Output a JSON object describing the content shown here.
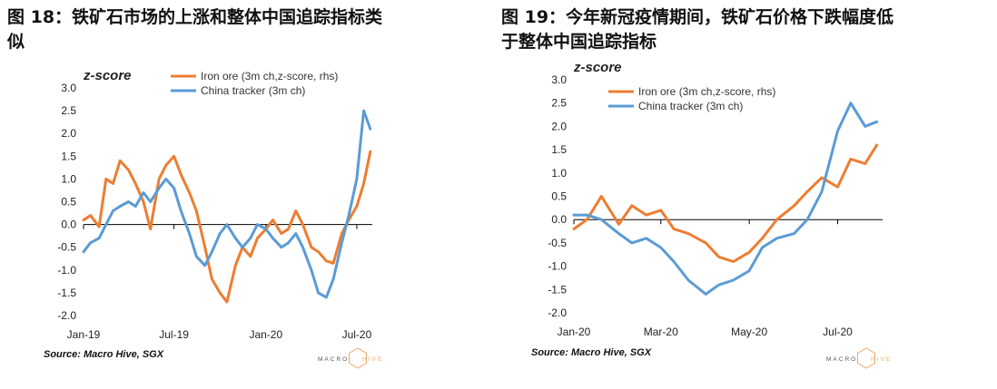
{
  "colors": {
    "iron": "#ED7D31",
    "china": "#5B9BD5",
    "axis": "#000000",
    "logo": "#F0A868"
  },
  "logo": {
    "prefix": "MACRO",
    "suffix": "HIVE"
  },
  "chart_data": [
    {
      "id": "left",
      "type": "line",
      "title_line1": "图 18：铁矿石市场的上涨和整体中国追踪指标类",
      "title_line2": "似",
      "ylabel": "z-score",
      "ylim": [
        -2.0,
        3.0
      ],
      "yticks": [
        "3.0",
        "2.5",
        "2.0",
        "1.5",
        "1.0",
        "0.5",
        "0.0",
        "-0.5",
        "-1.0",
        "-1.5",
        "-2.0"
      ],
      "xticks": [
        "Jan-19",
        "Jul-19",
        "Jan-20",
        "Jul-20"
      ],
      "xrange": [
        "2019-01-01",
        "2020-08-01"
      ],
      "xtick_dates": [
        "2019-01-01",
        "2019-07-01",
        "2020-01-01",
        "2020-07-01"
      ],
      "source": "Source: Macro Hive, SGX",
      "series": [
        {
          "name": "Iron ore (3m ch,z-score, rhs)",
          "color": "iron",
          "x": [
            "2019-01-01",
            "2019-01-15",
            "2019-02-01",
            "2019-02-15",
            "2019-03-01",
            "2019-03-15",
            "2019-04-01",
            "2019-04-15",
            "2019-05-01",
            "2019-05-15",
            "2019-06-01",
            "2019-06-15",
            "2019-07-01",
            "2019-07-15",
            "2019-08-01",
            "2019-08-15",
            "2019-09-01",
            "2019-09-15",
            "2019-10-01",
            "2019-10-15",
            "2019-11-01",
            "2019-11-15",
            "2019-12-01",
            "2019-12-15",
            "2020-01-01",
            "2020-01-15",
            "2020-02-01",
            "2020-02-15",
            "2020-03-01",
            "2020-03-15",
            "2020-04-01",
            "2020-04-15",
            "2020-05-01",
            "2020-05-15",
            "2020-06-01",
            "2020-06-15",
            "2020-07-01",
            "2020-07-15",
            "2020-07-28"
          ],
          "values": [
            0.1,
            0.2,
            -0.05,
            1.0,
            0.9,
            1.4,
            1.2,
            0.9,
            0.5,
            -0.1,
            1.0,
            1.3,
            1.5,
            1.1,
            0.7,
            0.3,
            -0.5,
            -1.2,
            -1.5,
            -1.7,
            -0.9,
            -0.5,
            -0.7,
            -0.3,
            -0.1,
            0.1,
            -0.2,
            -0.1,
            0.3,
            0.0,
            -0.5,
            -0.6,
            -0.8,
            -0.85,
            -0.2,
            0.1,
            0.4,
            0.9,
            1.6
          ]
        },
        {
          "name": "China tracker (3m ch)",
          "color": "china",
          "x": [
            "2019-01-01",
            "2019-01-15",
            "2019-02-01",
            "2019-02-15",
            "2019-03-01",
            "2019-03-15",
            "2019-04-01",
            "2019-04-15",
            "2019-05-01",
            "2019-05-15",
            "2019-06-01",
            "2019-06-15",
            "2019-07-01",
            "2019-07-15",
            "2019-08-01",
            "2019-08-15",
            "2019-09-01",
            "2019-09-15",
            "2019-10-01",
            "2019-10-15",
            "2019-11-01",
            "2019-11-15",
            "2019-12-01",
            "2019-12-15",
            "2020-01-01",
            "2020-01-15",
            "2020-02-01",
            "2020-02-15",
            "2020-03-01",
            "2020-03-15",
            "2020-04-01",
            "2020-04-15",
            "2020-05-01",
            "2020-05-15",
            "2020-06-01",
            "2020-06-15",
            "2020-07-01",
            "2020-07-15",
            "2020-07-28"
          ],
          "values": [
            -0.6,
            -0.4,
            -0.3,
            0.0,
            0.3,
            0.4,
            0.5,
            0.4,
            0.7,
            0.5,
            0.8,
            1.0,
            0.8,
            0.3,
            -0.2,
            -0.7,
            -0.9,
            -0.6,
            -0.2,
            0.0,
            -0.3,
            -0.5,
            -0.3,
            0.0,
            -0.1,
            -0.3,
            -0.5,
            -0.4,
            -0.2,
            -0.5,
            -1.0,
            -1.5,
            -1.6,
            -1.2,
            -0.4,
            0.2,
            1.0,
            2.5,
            2.1
          ]
        }
      ]
    },
    {
      "id": "right",
      "type": "line",
      "title_line1": "图 19：今年新冠疫情期间，铁矿石价格下跌幅度低",
      "title_line2": "于整体中国追踪指标",
      "ylabel": "z-score",
      "ylim": [
        -2.0,
        3.0
      ],
      "yticks": [
        "3.0",
        "2.5",
        "2.0",
        "1.5",
        "1.0",
        "0.5",
        "0.0",
        "-0.5",
        "-1.0",
        "-1.5",
        "-2.0"
      ],
      "xticks": [
        "Jan-20",
        "Mar-20",
        "May-20",
        "Jul-20"
      ],
      "xrange": [
        "2020-01-01",
        "2020-08-01"
      ],
      "xtick_dates": [
        "2020-01-01",
        "2020-03-01",
        "2020-05-01",
        "2020-07-01"
      ],
      "source": "Source: Macro Hive, SGX",
      "series": [
        {
          "name": "Iron ore (3m ch,z-score, rhs)",
          "color": "iron",
          "x": [
            "2020-01-01",
            "2020-01-10",
            "2020-01-20",
            "2020-02-01",
            "2020-02-10",
            "2020-02-20",
            "2020-03-01",
            "2020-03-10",
            "2020-03-20",
            "2020-04-01",
            "2020-04-10",
            "2020-04-20",
            "2020-05-01",
            "2020-05-10",
            "2020-05-20",
            "2020-06-01",
            "2020-06-10",
            "2020-06-20",
            "2020-07-01",
            "2020-07-10",
            "2020-07-20",
            "2020-07-28"
          ],
          "values": [
            -0.2,
            0.0,
            0.5,
            -0.1,
            0.3,
            0.1,
            0.2,
            -0.2,
            -0.3,
            -0.5,
            -0.8,
            -0.9,
            -0.7,
            -0.4,
            0.0,
            0.3,
            0.6,
            0.9,
            0.7,
            1.3,
            1.2,
            1.6
          ]
        },
        {
          "name": "China tracker (3m ch)",
          "color": "china",
          "x": [
            "2020-01-01",
            "2020-01-10",
            "2020-01-20",
            "2020-02-01",
            "2020-02-10",
            "2020-02-20",
            "2020-03-01",
            "2020-03-10",
            "2020-03-20",
            "2020-04-01",
            "2020-04-10",
            "2020-04-20",
            "2020-05-01",
            "2020-05-10",
            "2020-05-20",
            "2020-06-01",
            "2020-06-10",
            "2020-06-20",
            "2020-07-01",
            "2020-07-10",
            "2020-07-20",
            "2020-07-28"
          ],
          "values": [
            0.1,
            0.1,
            0.0,
            -0.3,
            -0.5,
            -0.4,
            -0.6,
            -0.9,
            -1.3,
            -1.6,
            -1.4,
            -1.3,
            -1.1,
            -0.6,
            -0.4,
            -0.3,
            0.0,
            0.6,
            1.9,
            2.5,
            2.0,
            2.1
          ]
        }
      ]
    }
  ]
}
